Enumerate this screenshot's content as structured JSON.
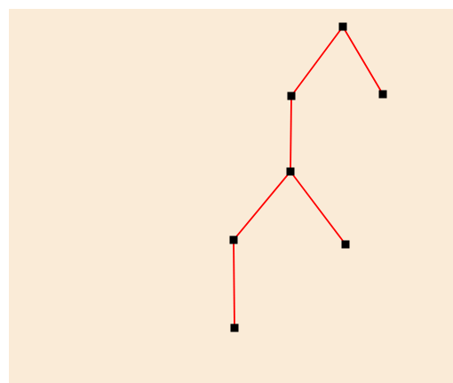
{
  "colors": {
    "background": "#faebd7",
    "edge": "#ff0000",
    "node": "#000000"
  },
  "tree": {
    "nodes": [
      {
        "id": "n1"
      },
      {
        "id": "n2"
      },
      {
        "id": "n3"
      },
      {
        "id": "n4"
      },
      {
        "id": "n5"
      },
      {
        "id": "n6"
      },
      {
        "id": "n7"
      }
    ],
    "edges": [
      {
        "from": "n1",
        "to": "n2"
      },
      {
        "from": "n1",
        "to": "n3"
      },
      {
        "from": "n2",
        "to": "n4"
      },
      {
        "from": "n4",
        "to": "n5"
      },
      {
        "from": "n4",
        "to": "n6"
      },
      {
        "from": "n5",
        "to": "n7"
      }
    ]
  }
}
